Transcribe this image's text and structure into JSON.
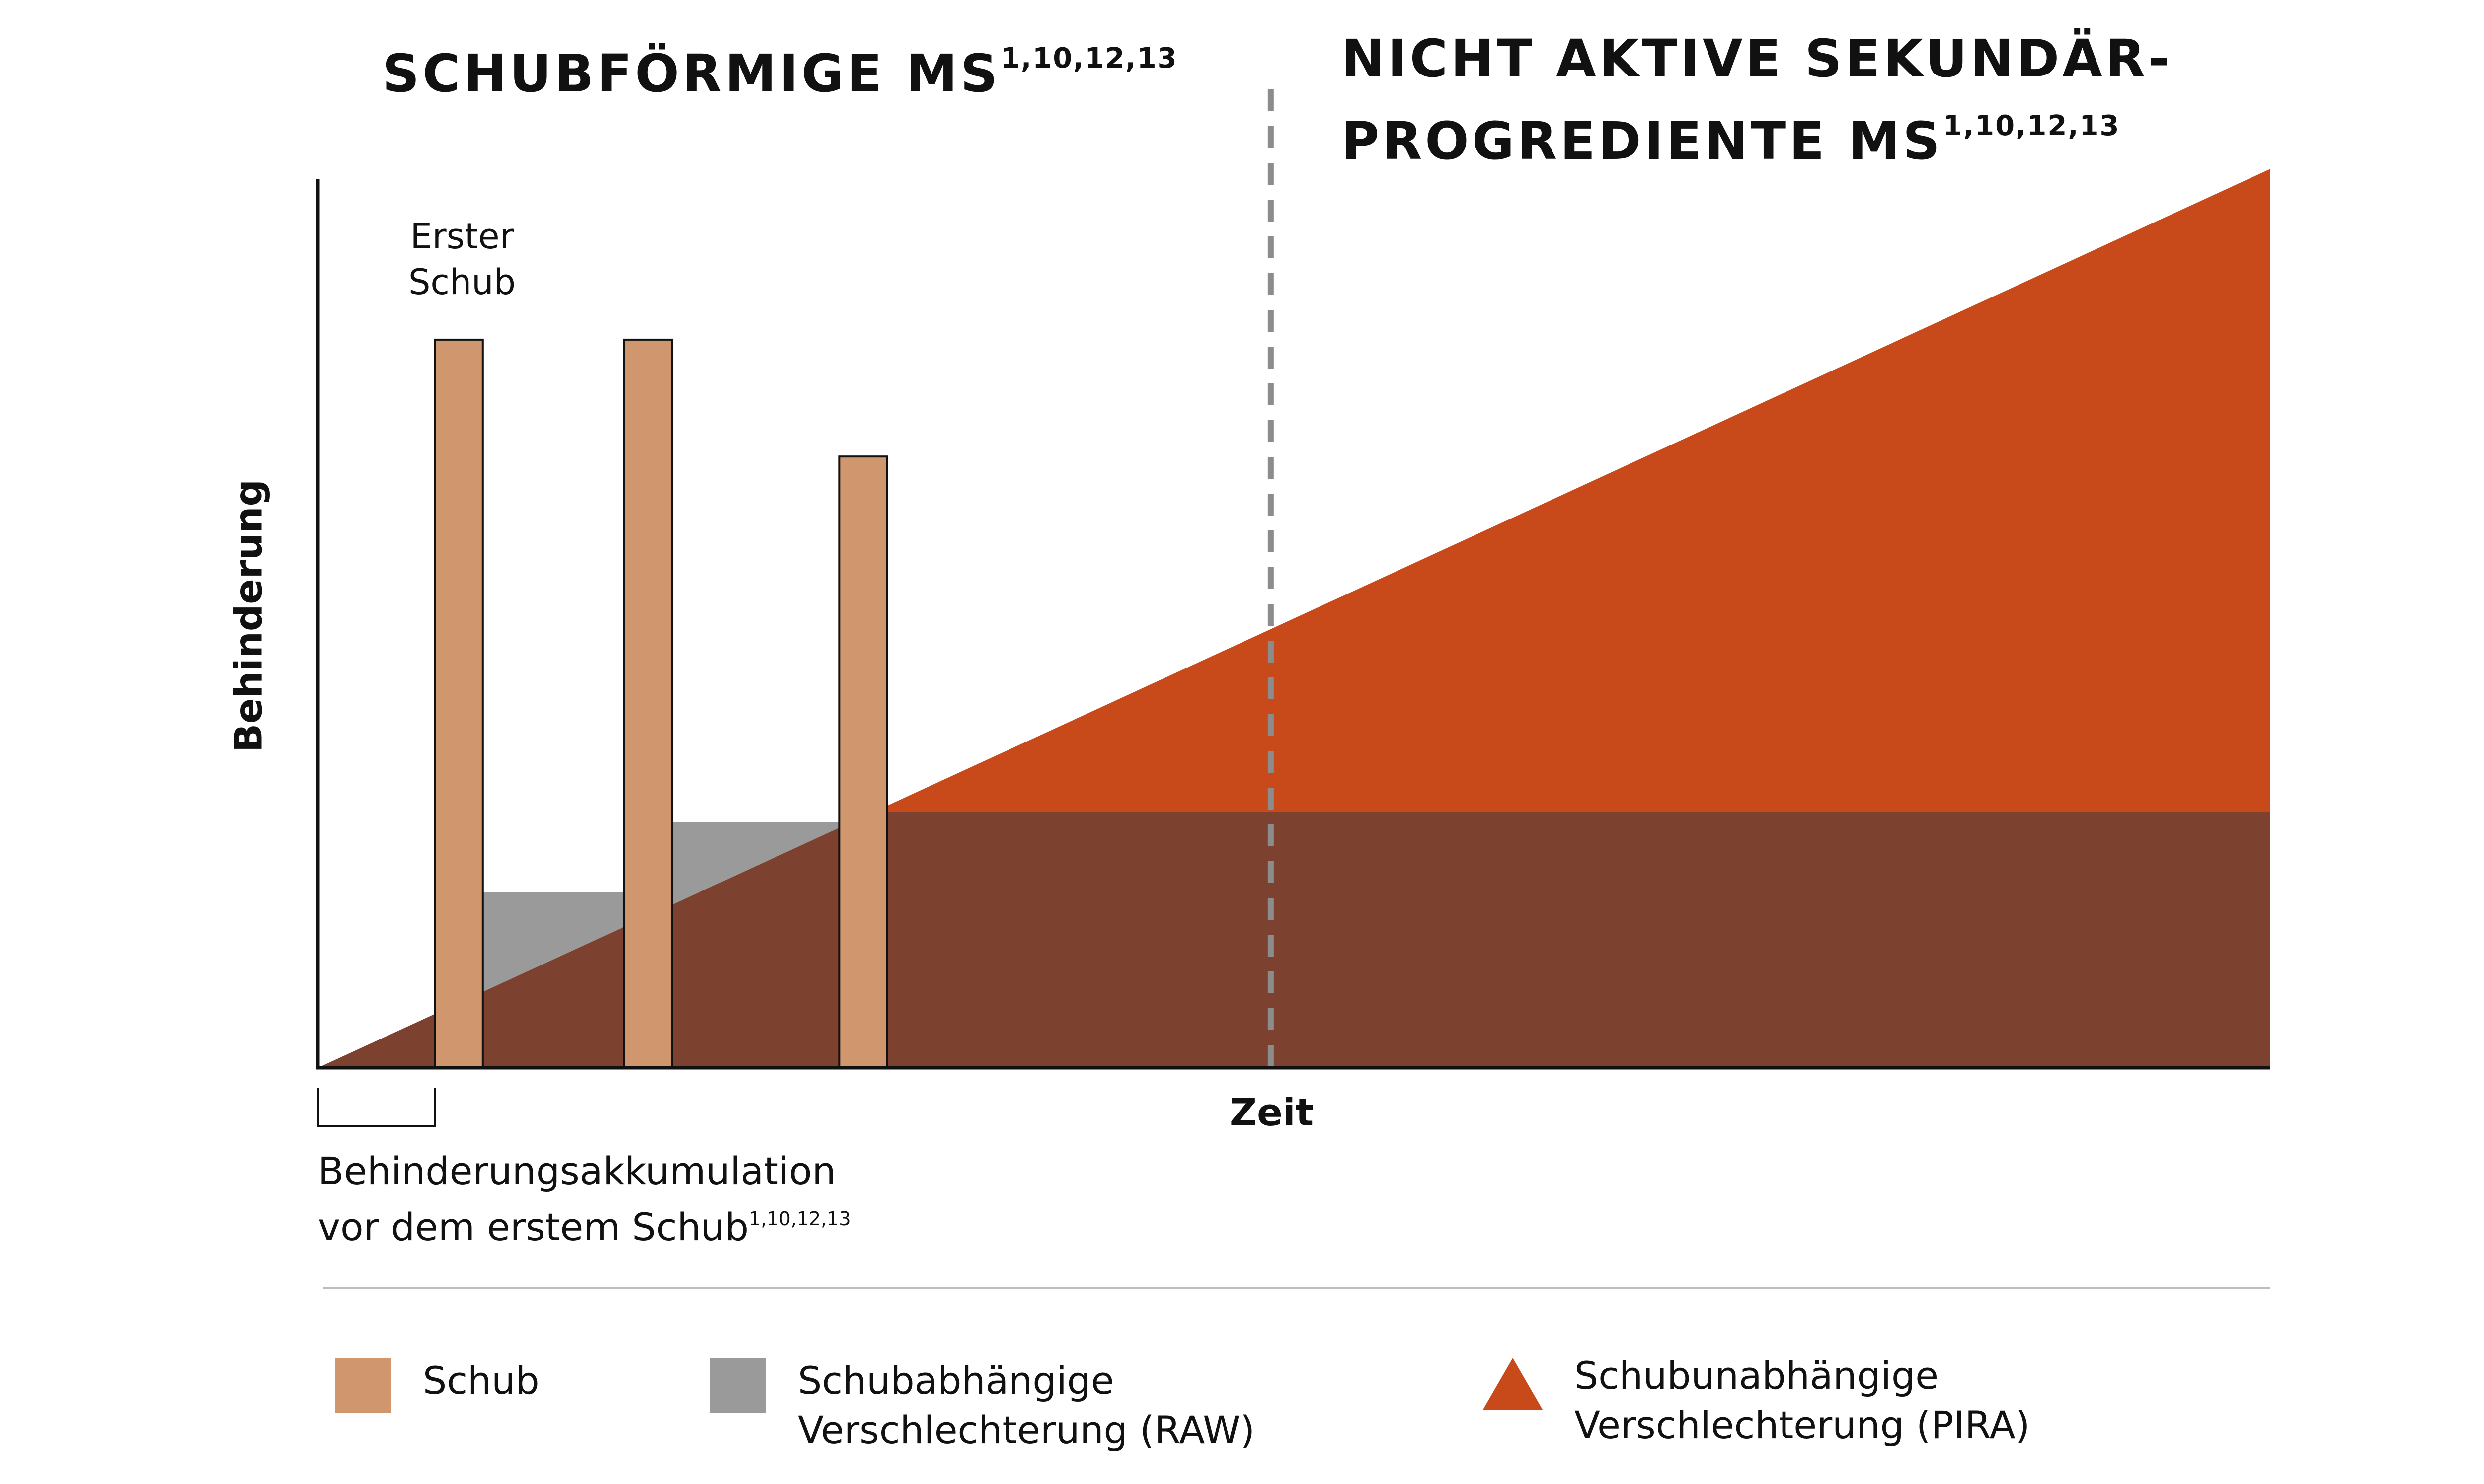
{
  "headings": {
    "left": {
      "text": "SCHUBFÖRMIGE MS",
      "refs": "1,10,12,13"
    },
    "right": {
      "line1": "NICHT AKTIVE SEKUNDÄR-",
      "line2": "PROGREDIENTE MS",
      "refs": "1,10,12,13"
    }
  },
  "annotations": {
    "first_relapse": {
      "line1": "Erster",
      "line2": "Schub"
    },
    "pre_relapse": {
      "line1": "Behinderungsakkumulation",
      "line2": "vor dem erstem Schub",
      "refs": "1,10,12,13"
    }
  },
  "axes": {
    "y_label": "Behinderung",
    "x_label": "Zeit"
  },
  "legend": {
    "relapse": {
      "label": "Schub"
    },
    "raw": {
      "line1": "Schubabhängige",
      "line2": "Verschlechterung (RAW)"
    },
    "pira": {
      "line1": "Schubunabhängige",
      "line2": "Verschlechterung (PIRA)"
    }
  },
  "colors": {
    "relapse": "#D0976F",
    "raw": "#9A9A9A",
    "pira": "#C84A1A",
    "overlap": "#7D4130",
    "axis": "#111111",
    "phase_divider": "#8C8C8C"
  },
  "chart_data": {
    "type": "area",
    "x_range": [
      0,
      100
    ],
    "y_range": [
      0,
      100
    ],
    "pira_trend": [
      [
        0,
        0
      ],
      [
        100,
        100
      ]
    ],
    "relapses": [
      {
        "x": 6,
        "height": 81
      },
      {
        "x": 15.7,
        "height": 81
      },
      {
        "x": 26.7,
        "height": 68
      }
    ],
    "raw_steps": [
      {
        "from_x": 8.4,
        "to_x": 15.7,
        "level": 19.5
      },
      {
        "from_x": 18.1,
        "to_x": 26.7,
        "level": 27.3
      }
    ],
    "raw_plateau": {
      "from_x": 29.1,
      "to_x": 100,
      "level": 28.5
    },
    "phase_divider_x": 48.8
  }
}
